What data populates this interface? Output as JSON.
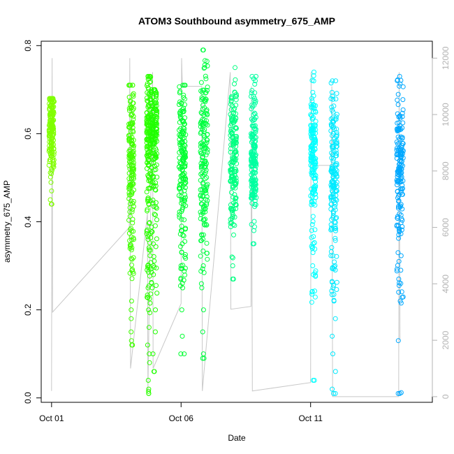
{
  "chart_data": {
    "type": "scatter",
    "title": "ATOM3 Southbound asymmetry_675_AMP",
    "xlabel": "Date",
    "ylabel": "asymmetry_675_AMP",
    "x_ticks": [
      {
        "day": 1,
        "label": "Oct 01"
      },
      {
        "day": 6,
        "label": "Oct 06"
      },
      {
        "day": 11,
        "label": "Oct 11"
      }
    ],
    "xlim": [
      0.6,
      15.7
    ],
    "ylim_left": [
      -0.01,
      0.81
    ],
    "y_ticks_left": [
      "0.0",
      "0.2",
      "0.4",
      "0.6",
      "0.8"
    ],
    "ylim_right": [
      -200,
      12600
    ],
    "y_ticks_right": [
      "0",
      "2000",
      "4000",
      "6000",
      "8000",
      "10000",
      "12000"
    ],
    "right_axis_color": "#b3b3b3",
    "clusters": [
      {
        "day": 1.0,
        "width": 0.1,
        "ymin": 0.44,
        "ymax": 0.68,
        "center": 0.61,
        "sd": 0.05,
        "outliers": [
          0.44,
          0.45,
          0.47
        ],
        "color": "#80ff00"
      },
      {
        "day": 4.08,
        "width": 0.1,
        "ymin": 0.12,
        "ymax": 0.71,
        "center": 0.55,
        "sd": 0.08,
        "outliers": [
          0.12,
          0.13,
          0.15,
          0.18,
          0.2,
          0.22
        ],
        "color": "#40ff00"
      },
      {
        "day": 4.75,
        "width": 0.08,
        "ymin": 0.01,
        "ymax": 0.73,
        "center": 0.6,
        "sd": 0.08,
        "outliers": [
          0.01,
          0.015,
          0.02,
          0.04,
          0.08,
          0.1,
          0.12,
          0.16,
          0.2,
          0.25,
          0.3
        ],
        "color": "#2cff00"
      },
      {
        "day": 4.95,
        "width": 0.12,
        "ymin": 0.06,
        "ymax": 0.7,
        "center": 0.6,
        "sd": 0.07,
        "outliers": [
          0.06,
          0.1,
          0.15,
          0.2,
          0.25,
          0.3,
          0.35
        ],
        "color": "#20ff00"
      },
      {
        "day": 6.05,
        "width": 0.13,
        "ymin": 0.1,
        "ymax": 0.71,
        "center": 0.55,
        "sd": 0.08,
        "outliers": [
          0.1,
          0.14,
          0.2,
          0.25,
          0.3,
          0.35
        ],
        "color": "#00ff30"
      },
      {
        "day": 6.88,
        "width": 0.14,
        "ymin": 0.09,
        "ymax": 0.79,
        "center": 0.55,
        "sd": 0.09,
        "outliers": [
          0.09,
          0.1,
          0.15,
          0.2,
          0.25,
          0.3
        ],
        "color": "#00ff40"
      },
      {
        "day": 8.02,
        "width": 0.12,
        "ymin": 0.27,
        "ymax": 0.75,
        "center": 0.55,
        "sd": 0.07,
        "outliers": [
          0.27,
          0.3,
          0.32,
          0.37
        ],
        "color": "#00ff80"
      },
      {
        "day": 8.8,
        "width": 0.1,
        "ymin": 0.35,
        "ymax": 0.73,
        "center": 0.53,
        "sd": 0.06,
        "outliers": [
          0.35,
          0.38
        ],
        "color": "#00ffa0"
      },
      {
        "day": 11.1,
        "width": 0.1,
        "ymin": 0.04,
        "ymax": 0.74,
        "center": 0.55,
        "sd": 0.07,
        "outliers": [
          0.04,
          0.28,
          0.3,
          0.35
        ],
        "color": "#00ffff"
      },
      {
        "day": 11.9,
        "width": 0.12,
        "ymin": 0.01,
        "ymax": 0.72,
        "center": 0.5,
        "sd": 0.08,
        "outliers": [
          0.01,
          0.02,
          0.06,
          0.1,
          0.14,
          0.18,
          0.22,
          0.25,
          0.3
        ],
        "color": "#00eaff"
      },
      {
        "day": 14.45,
        "width": 0.13,
        "ymin": 0.01,
        "ymax": 0.73,
        "center": 0.52,
        "sd": 0.08,
        "outliers": [
          0.01,
          0.012,
          0.13,
          0.22,
          0.24,
          0.27,
          0.29,
          0.31
        ],
        "color": "#00a8ff"
      }
    ],
    "record_count_line": {
      "color": "#c8c8c8",
      "points": [
        {
          "day": 1.0,
          "value": 200
        },
        {
          "day": 1.02,
          "value": 12000
        },
        {
          "day": 1.04,
          "value": 3000
        },
        {
          "day": 4.0,
          "value": 6000
        },
        {
          "day": 4.02,
          "value": 12000
        },
        {
          "day": 4.05,
          "value": 1000
        },
        {
          "day": 4.7,
          "value": 6500
        },
        {
          "day": 4.72,
          "value": 200
        },
        {
          "day": 4.9,
          "value": 11500
        },
        {
          "day": 4.92,
          "value": 1000
        },
        {
          "day": 6.0,
          "value": 3300
        },
        {
          "day": 6.02,
          "value": 12000
        },
        {
          "day": 6.05,
          "value": 11000
        },
        {
          "day": 6.8,
          "value": 11000
        },
        {
          "day": 6.82,
          "value": 200
        },
        {
          "day": 7.9,
          "value": 11500
        },
        {
          "day": 7.92,
          "value": 3100
        },
        {
          "day": 8.7,
          "value": 3200
        },
        {
          "day": 8.72,
          "value": 11000
        },
        {
          "day": 8.75,
          "value": 200
        },
        {
          "day": 11.0,
          "value": 500
        },
        {
          "day": 11.02,
          "value": 11500
        },
        {
          "day": 11.05,
          "value": 8200
        },
        {
          "day": 11.8,
          "value": 8200
        },
        {
          "day": 11.82,
          "value": 11000
        },
        {
          "day": 11.85,
          "value": 0
        },
        {
          "day": 14.4,
          "value": 0
        },
        {
          "day": 14.42,
          "value": 11500
        },
        {
          "day": 14.45,
          "value": 2000
        }
      ]
    }
  }
}
